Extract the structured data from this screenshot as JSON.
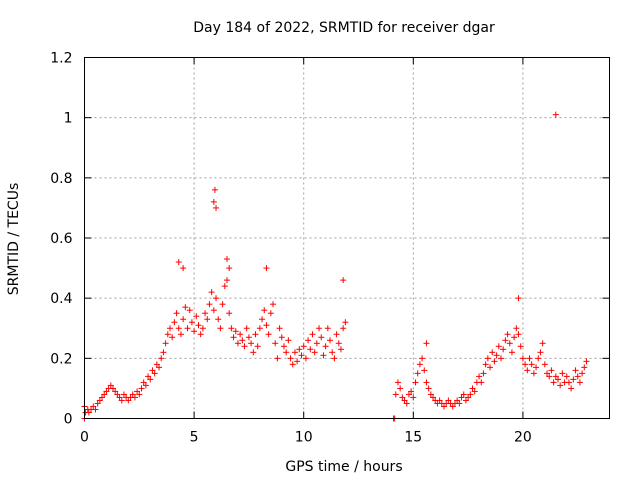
{
  "chart_data": {
    "type": "scatter",
    "title": "Day 184 of 2022, SRMTID for receiver dgar",
    "xlabel": "GPS time / hours",
    "ylabel": "SRMTID / TECUs",
    "xlim": [
      0,
      23.95
    ],
    "ylim": [
      0,
      1.2
    ],
    "xticks": [
      0,
      5,
      10,
      15,
      20
    ],
    "xtick_labels": [
      "0",
      "5",
      "10",
      "15",
      "20"
    ],
    "yticks": [
      0,
      0.2,
      0.4,
      0.6,
      0.8,
      1.0,
      1.2
    ],
    "ytick_labels": [
      "0",
      "0.2",
      "0.4",
      "0.6",
      "0.8",
      "1",
      "1.2"
    ],
    "grid": true,
    "marker": "+",
    "color": "#ff0000",
    "series": [
      {
        "name": "SRMTID",
        "x": [
          0.0,
          0.05,
          0.15,
          0.2,
          0.3,
          0.4,
          0.5,
          0.6,
          0.7,
          0.8,
          0.9,
          1.0,
          1.1,
          1.2,
          1.3,
          1.4,
          1.5,
          1.6,
          1.7,
          1.8,
          1.9,
          2.0,
          2.1,
          2.2,
          2.3,
          2.4,
          2.5,
          2.6,
          2.7,
          2.8,
          2.9,
          3.0,
          3.1,
          3.2,
          3.3,
          3.4,
          3.5,
          3.6,
          3.7,
          3.8,
          3.9,
          4.0,
          4.1,
          4.2,
          4.3,
          4.4,
          4.5,
          4.6,
          4.7,
          4.8,
          4.9,
          5.0,
          5.1,
          5.2,
          5.3,
          5.4,
          5.5,
          5.6,
          5.7,
          5.8,
          5.9,
          6.0,
          6.1,
          6.2,
          6.3,
          6.4,
          6.5,
          6.6,
          6.7,
          6.8,
          6.9,
          7.0,
          7.1,
          7.2,
          7.3,
          7.4,
          7.5,
          7.6,
          7.7,
          7.8,
          7.9,
          8.0,
          8.1,
          8.2,
          8.3,
          8.4,
          8.5,
          8.6,
          8.7,
          8.8,
          8.9,
          9.0,
          9.1,
          9.2,
          9.3,
          9.4,
          9.5,
          9.6,
          9.7,
          9.8,
          9.9,
          10.0,
          10.1,
          10.2,
          10.3,
          10.4,
          10.5,
          10.6,
          10.7,
          10.8,
          10.9,
          11.0,
          11.1,
          11.2,
          11.3,
          11.4,
          11.5,
          11.6,
          11.7,
          11.8,
          11.9,
          14.2,
          14.3,
          14.4,
          14.5,
          14.6,
          14.7,
          14.8,
          14.9,
          15.0,
          15.1,
          15.2,
          15.3,
          15.4,
          15.5,
          15.6,
          15.7,
          15.8,
          15.9,
          16.0,
          16.1,
          16.2,
          16.3,
          16.4,
          16.5,
          16.6,
          16.7,
          16.8,
          16.9,
          17.0,
          17.1,
          17.2,
          17.3,
          17.4,
          17.5,
          17.6,
          17.7,
          17.8,
          17.9,
          18.0,
          18.1,
          18.2,
          18.3,
          18.4,
          18.5,
          18.6,
          18.7,
          18.8,
          18.9,
          19.0,
          19.1,
          19.2,
          19.3,
          19.4,
          19.5,
          19.6,
          19.7,
          19.8,
          19.9,
          20.0,
          20.1,
          20.2,
          20.3,
          20.4,
          20.5,
          20.6,
          20.7,
          20.8,
          20.9,
          21.0,
          21.1,
          21.2,
          21.3,
          21.4,
          21.5,
          21.6,
          21.7,
          21.8,
          21.9,
          22.0,
          22.1,
          22.2,
          22.3,
          22.4,
          22.5,
          22.6,
          22.7,
          22.8,
          22.9,
          5.9,
          5.95,
          6.0,
          6.5,
          6.6,
          4.3,
          4.5,
          8.3,
          11.8,
          14.1,
          14.15,
          0.0,
          21.5,
          19.8,
          15.6
        ],
        "y": [
          0.0,
          0.02,
          0.03,
          0.02,
          0.03,
          0.04,
          0.03,
          0.05,
          0.06,
          0.07,
          0.08,
          0.09,
          0.1,
          0.11,
          0.1,
          0.09,
          0.08,
          0.07,
          0.06,
          0.08,
          0.07,
          0.06,
          0.07,
          0.08,
          0.07,
          0.09,
          0.08,
          0.1,
          0.12,
          0.11,
          0.14,
          0.13,
          0.16,
          0.15,
          0.18,
          0.17,
          0.2,
          0.22,
          0.25,
          0.28,
          0.3,
          0.27,
          0.32,
          0.35,
          0.3,
          0.28,
          0.33,
          0.37,
          0.3,
          0.36,
          0.32,
          0.29,
          0.34,
          0.31,
          0.28,
          0.3,
          0.35,
          0.33,
          0.38,
          0.42,
          0.36,
          0.4,
          0.33,
          0.3,
          0.38,
          0.44,
          0.46,
          0.35,
          0.3,
          0.27,
          0.29,
          0.25,
          0.28,
          0.26,
          0.24,
          0.3,
          0.27,
          0.25,
          0.22,
          0.28,
          0.24,
          0.3,
          0.33,
          0.36,
          0.31,
          0.28,
          0.35,
          0.38,
          0.25,
          0.2,
          0.3,
          0.27,
          0.24,
          0.22,
          0.26,
          0.2,
          0.18,
          0.22,
          0.19,
          0.23,
          0.21,
          0.24,
          0.2,
          0.26,
          0.23,
          0.28,
          0.22,
          0.25,
          0.3,
          0.27,
          0.21,
          0.24,
          0.3,
          0.26,
          0.22,
          0.2,
          0.28,
          0.25,
          0.23,
          0.3,
          0.32,
          0.08,
          0.12,
          0.1,
          0.07,
          0.06,
          0.05,
          0.08,
          0.09,
          0.07,
          0.12,
          0.15,
          0.18,
          0.2,
          0.16,
          0.12,
          0.1,
          0.08,
          0.07,
          0.06,
          0.05,
          0.06,
          0.05,
          0.04,
          0.05,
          0.06,
          0.05,
          0.04,
          0.05,
          0.06,
          0.05,
          0.07,
          0.08,
          0.06,
          0.07,
          0.08,
          0.1,
          0.09,
          0.12,
          0.14,
          0.12,
          0.15,
          0.18,
          0.2,
          0.17,
          0.22,
          0.19,
          0.21,
          0.24,
          0.2,
          0.23,
          0.26,
          0.28,
          0.25,
          0.22,
          0.27,
          0.3,
          0.28,
          0.24,
          0.2,
          0.18,
          0.16,
          0.2,
          0.18,
          0.15,
          0.17,
          0.2,
          0.22,
          0.25,
          0.18,
          0.15,
          0.14,
          0.16,
          0.12,
          0.14,
          0.13,
          0.11,
          0.15,
          0.12,
          0.14,
          0.12,
          0.1,
          0.13,
          0.16,
          0.14,
          0.12,
          0.15,
          0.17,
          0.19,
          0.72,
          0.76,
          0.7,
          0.53,
          0.5,
          0.52,
          0.5,
          0.5,
          0.46,
          0.0,
          0.0,
          0.04,
          1.01,
          0.4,
          0.25
        ]
      }
    ]
  }
}
